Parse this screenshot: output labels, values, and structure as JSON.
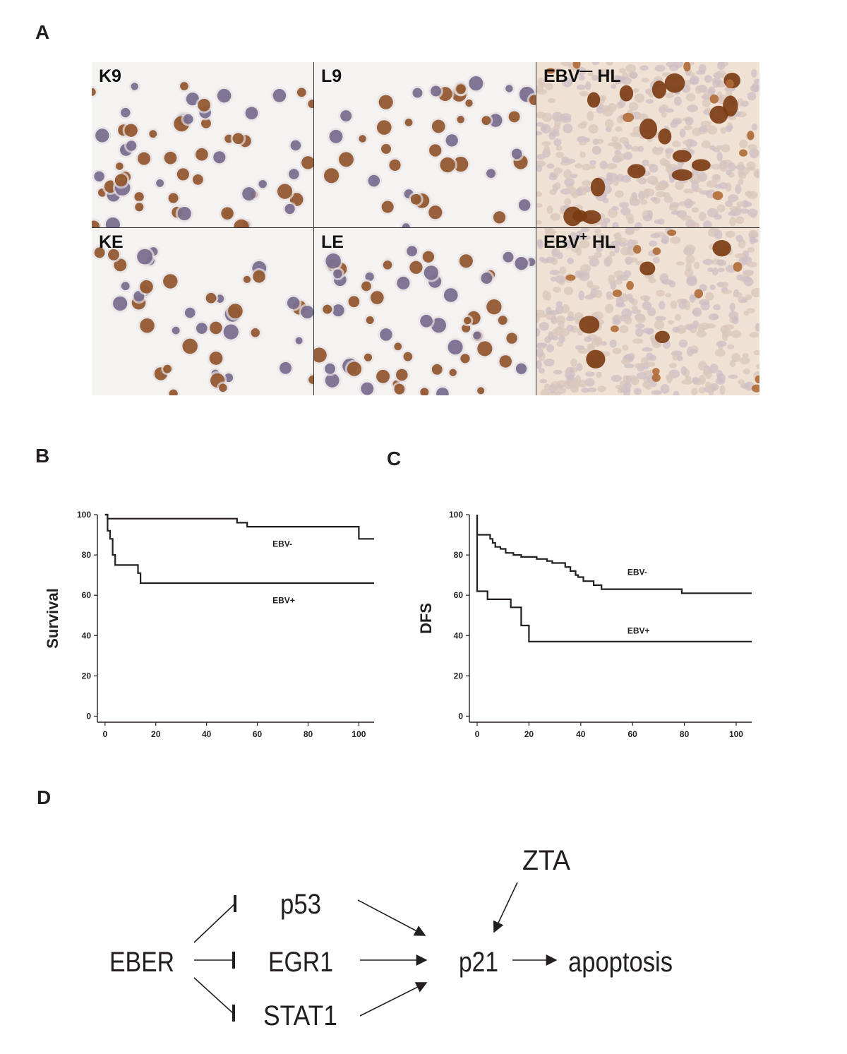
{
  "panels": {
    "a": "A",
    "b": "B",
    "c": "C",
    "d": "D"
  },
  "micrographs": [
    {
      "label_main": "K9",
      "label_sup": "",
      "label_tail": "",
      "stain": "cells",
      "seed": 11
    },
    {
      "label_main": "L9",
      "label_sup": "",
      "label_tail": "",
      "stain": "cells-sparse",
      "seed": 23
    },
    {
      "label_main": "EBV",
      "label_sup": "—",
      "label_tail": " HL",
      "stain": "tissue-strong",
      "seed": 37
    },
    {
      "label_main": "KE",
      "label_sup": "",
      "label_tail": "",
      "stain": "cells-sparse",
      "seed": 41
    },
    {
      "label_main": "LE",
      "label_sup": "",
      "label_tail": "",
      "stain": "cells",
      "seed": 53
    },
    {
      "label_main": "EBV",
      "label_sup": "+",
      "label_tail": " HL",
      "stain": "tissue-weak",
      "seed": 67
    }
  ],
  "chart_data": [
    {
      "type": "line",
      "style": "step",
      "ylabel": "Survival",
      "xlabel": "",
      "xlim": [
        -3,
        106
      ],
      "ylim": [
        -3,
        100
      ],
      "xticks": [
        0,
        20,
        40,
        60,
        80,
        100
      ],
      "yticks": [
        0,
        20,
        40,
        60,
        80,
        100
      ],
      "series": [
        {
          "name": "EBV-",
          "points": [
            [
              0,
              100
            ],
            [
              1,
              100
            ],
            [
              1,
              98
            ],
            [
              52,
              98
            ],
            [
              52,
              96
            ],
            [
              56,
              96
            ],
            [
              56,
              94
            ],
            [
              100,
              94
            ],
            [
              100,
              88
            ],
            [
              106,
              88
            ]
          ]
        },
        {
          "name": "EBV+",
          "points": [
            [
              0,
              100
            ],
            [
              1,
              100
            ],
            [
              1,
              92
            ],
            [
              2,
              92
            ],
            [
              2,
              88
            ],
            [
              3,
              88
            ],
            [
              3,
              80
            ],
            [
              4,
              80
            ],
            [
              4,
              75
            ],
            [
              13,
              75
            ],
            [
              13,
              71
            ],
            [
              14,
              71
            ],
            [
              14,
              66
            ],
            [
              106,
              66
            ]
          ]
        }
      ]
    },
    {
      "type": "line",
      "style": "step",
      "ylabel": "DFS",
      "xlabel": "",
      "xlim": [
        -3,
        106
      ],
      "ylim": [
        -3,
        100
      ],
      "xticks": [
        0,
        20,
        40,
        60,
        80,
        100
      ],
      "yticks": [
        0,
        20,
        40,
        60,
        80,
        100
      ],
      "series": [
        {
          "name": "EBV-",
          "points": [
            [
              0,
              100
            ],
            [
              0,
              90
            ],
            [
              5,
              90
            ],
            [
              5,
              88
            ],
            [
              6,
              88
            ],
            [
              6,
              86
            ],
            [
              7,
              86
            ],
            [
              7,
              84
            ],
            [
              9,
              84
            ],
            [
              9,
              83
            ],
            [
              11,
              83
            ],
            [
              11,
              81
            ],
            [
              14,
              81
            ],
            [
              14,
              80
            ],
            [
              17,
              80
            ],
            [
              17,
              79
            ],
            [
              23,
              79
            ],
            [
              23,
              78
            ],
            [
              27,
              78
            ],
            [
              27,
              77
            ],
            [
              29,
              77
            ],
            [
              29,
              76
            ],
            [
              34,
              76
            ],
            [
              34,
              74
            ],
            [
              36,
              74
            ],
            [
              36,
              72
            ],
            [
              38,
              72
            ],
            [
              38,
              70
            ],
            [
              39,
              70
            ],
            [
              39,
              69
            ],
            [
              41,
              69
            ],
            [
              41,
              67
            ],
            [
              45,
              67
            ],
            [
              45,
              65
            ],
            [
              48,
              65
            ],
            [
              48,
              63
            ],
            [
              79,
              63
            ],
            [
              79,
              61
            ],
            [
              106,
              61
            ]
          ]
        },
        {
          "name": "EBV+",
          "points": [
            [
              0,
              100
            ],
            [
              0,
              62
            ],
            [
              4,
              62
            ],
            [
              4,
              58
            ],
            [
              13,
              58
            ],
            [
              13,
              54
            ],
            [
              17,
              54
            ],
            [
              17,
              45
            ],
            [
              20,
              45
            ],
            [
              20,
              37
            ],
            [
              106,
              37
            ]
          ]
        }
      ]
    }
  ],
  "diagram": {
    "nodes": {
      "eber": "EBER",
      "p53": "p53",
      "egr1": "EGR1",
      "stat1": "STAT1",
      "p21": "p21",
      "zta": "ZTA",
      "apoptosis": "apoptosis"
    }
  },
  "colors": {
    "ink": "#231f20",
    "stain_brown": "#8a4a1c",
    "stain_purple": "#6f6286"
  }
}
